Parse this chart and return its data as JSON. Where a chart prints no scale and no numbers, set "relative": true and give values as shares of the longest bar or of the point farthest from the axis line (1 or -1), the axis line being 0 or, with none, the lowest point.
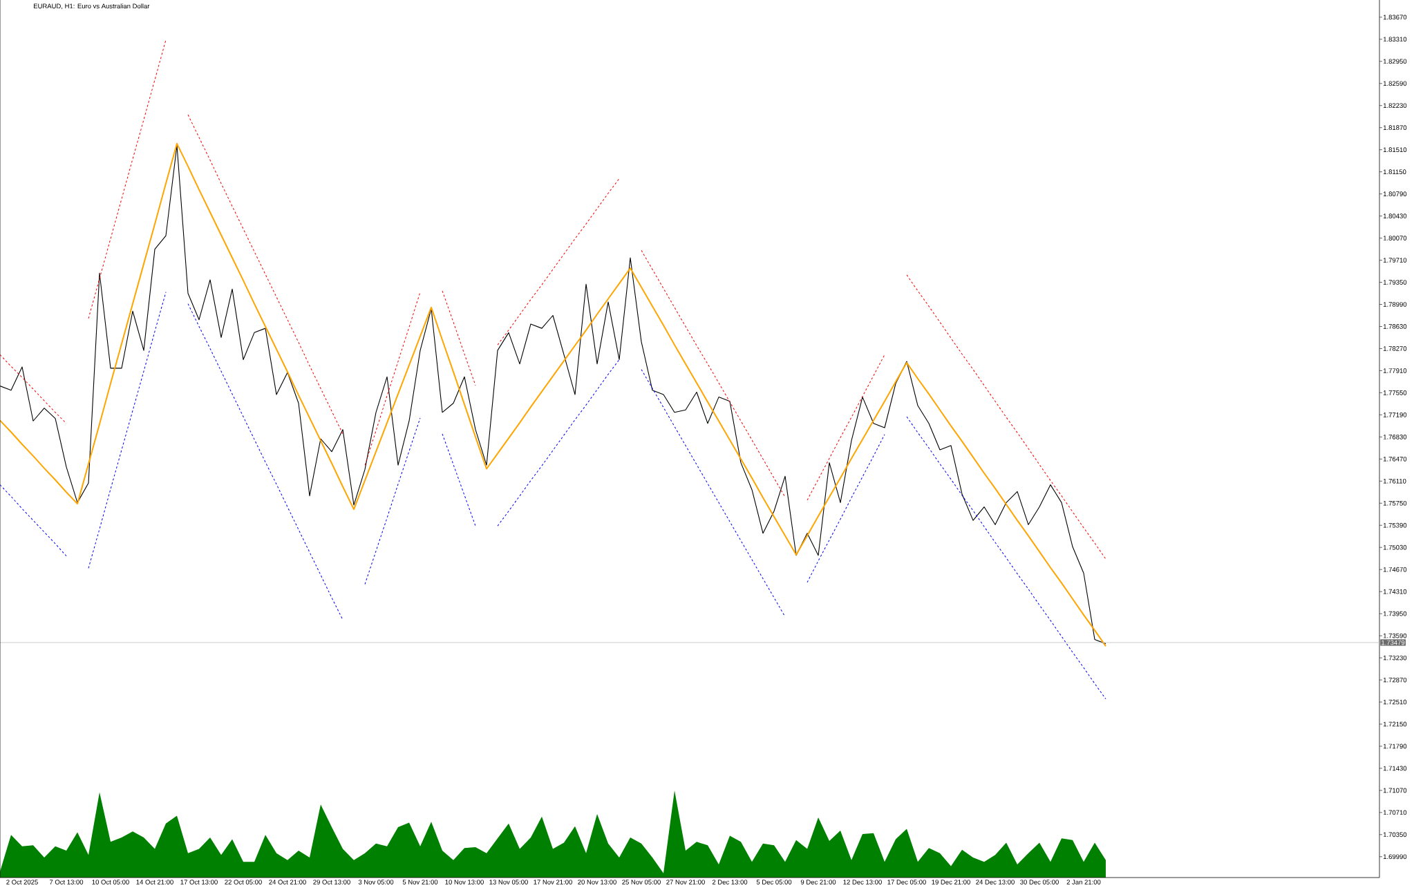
{
  "chart_data": [
    {
      "type": "line",
      "title": "EURAUD, H1: Euro vs Australian Dollar",
      "ylim": [
        1.6965,
        1.8395
      ],
      "categories": [
        null,
        null,
        "2 Oct 2025",
        null,
        null,
        null,
        "7 Oct 13:00",
        null,
        null,
        null,
        "10 Oct 05:00",
        null,
        null,
        null,
        "14 Oct 21:00",
        null,
        null,
        null,
        "17 Oct 13:00",
        null,
        null,
        null,
        "22 Oct 05:00",
        null,
        null,
        null,
        "24 Oct 21:00",
        null,
        null,
        null,
        "29 Oct 13:00",
        null,
        null,
        null,
        "3 Nov 05:00",
        null,
        null,
        null,
        "5 Nov 21:00",
        null,
        null,
        null,
        "10 Nov 13:00",
        null,
        null,
        null,
        "13 Nov 05:00",
        null,
        null,
        null,
        "17 Nov 21:00",
        null,
        null,
        null,
        "20 Nov 13:00",
        null,
        null,
        null,
        "25 Nov 05:00",
        null,
        null,
        null,
        "27 Nov 21:00",
        null,
        null,
        null,
        "2 Dec 13:00",
        null,
        null,
        null,
        "5 Dec 05:00",
        null,
        null,
        null,
        "9 Dec 21:00",
        null,
        null,
        null,
        "12 Dec 13:00",
        null,
        null,
        null,
        "17 Dec 05:00",
        null,
        null,
        null,
        "19 Dec 21:00",
        null,
        null,
        null,
        "24 Dec 13:00",
        null,
        null,
        null,
        "30 Dec 05:00",
        null,
        null,
        null,
        "2 Jan 21:00",
        null,
        null,
        null,
        null,
        null,
        null,
        null,
        null,
        null,
        null,
        null,
        null,
        null,
        null,
        null,
        null,
        null,
        null,
        null,
        null,
        null,
        null,
        null,
        null,
        null,
        null
      ],
      "yticks": [
        {
          "value": 1.6999,
          "label": "1.69990"
        },
        {
          "value": 1.7035,
          "label": "1.70350"
        },
        {
          "value": 1.7071,
          "label": "1.70710"
        },
        {
          "value": 1.7107,
          "label": "1.71070"
        },
        {
          "value": 1.7143,
          "label": "1.71430"
        },
        {
          "value": 1.7179,
          "label": "1.71790"
        },
        {
          "value": 1.7215,
          "label": "1.72150"
        },
        {
          "value": 1.7251,
          "label": "1.72510"
        },
        {
          "value": 1.7287,
          "label": "1.72870"
        },
        {
          "value": 1.7323,
          "label": "1.73230"
        },
        {
          "value": 1.7359,
          "label": "1.73590"
        },
        {
          "value": 1.7395,
          "label": "1.73950"
        },
        {
          "value": 1.7431,
          "label": "1.74310"
        },
        {
          "value": 1.7467,
          "label": "1.74670"
        },
        {
          "value": 1.7503,
          "label": "1.75030"
        },
        {
          "value": 1.7539,
          "label": "1.75390"
        },
        {
          "value": 1.7575,
          "label": "1.75750"
        },
        {
          "value": 1.7611,
          "label": "1.76110"
        },
        {
          "value": 1.7647,
          "label": "1.76470"
        },
        {
          "value": 1.7683,
          "label": "1.76830"
        },
        {
          "value": 1.7719,
          "label": "1.77190"
        },
        {
          "value": 1.7755,
          "label": "1.77550"
        },
        {
          "value": 1.7791,
          "label": "1.77910"
        },
        {
          "value": 1.7827,
          "label": "1.78270"
        },
        {
          "value": 1.7863,
          "label": "1.78630"
        },
        {
          "value": 1.7899,
          "label": "1.78990"
        },
        {
          "value": 1.7935,
          "label": "1.79350"
        },
        {
          "value": 1.7971,
          "label": "1.79710"
        },
        {
          "value": 1.8007,
          "label": "1.80070"
        },
        {
          "value": 1.8043,
          "label": "1.80430"
        },
        {
          "value": 1.8079,
          "label": "1.80790"
        },
        {
          "value": 1.8115,
          "label": "1.81150"
        },
        {
          "value": 1.8151,
          "label": "1.81510"
        },
        {
          "value": 1.8187,
          "label": "1.81870"
        },
        {
          "value": 1.8223,
          "label": "1.82230"
        },
        {
          "value": 1.8259,
          "label": "1.82590"
        },
        {
          "value": 1.8295,
          "label": "1.82950"
        },
        {
          "value": 1.8331,
          "label": "1.83310"
        },
        {
          "value": 1.8367,
          "label": "1.83670"
        }
      ],
      "series": [
        {
          "type": "line",
          "color": "#000000",
          "line_style": "solid",
          "values": [
            1.7766,
            1.7759,
            1.7797,
            1.7709,
            1.773,
            1.7713,
            1.7634,
            1.7576,
            1.7608,
            1.795,
            1.7795,
            1.7795,
            1.7888,
            1.7824,
            1.7989,
            1.8011,
            1.8158,
            1.7917,
            1.7874,
            1.7939,
            1.7845,
            1.7924,
            1.7809,
            1.7853,
            1.786,
            1.7752,
            1.7788,
            1.7738,
            1.7587,
            1.768,
            1.7659,
            1.7695,
            1.7572,
            1.763,
            1.7723,
            1.7781,
            1.7637,
            1.7709,
            1.7824,
            1.7892,
            1.7723,
            1.7738,
            1.7781,
            1.7695,
            1.7637,
            1.7824,
            1.7853,
            1.7802,
            1.7867,
            1.786,
            1.7881,
            1.7817,
            1.7752,
            1.7932,
            1.7802,
            1.7903,
            1.7809,
            1.7975,
            1.7838,
            1.7759,
            1.7752,
            1.7723,
            1.7727,
            1.7756,
            1.7705,
            1.7748,
            1.7741,
            1.7641,
            1.7597,
            1.7526,
            1.7562,
            1.7619,
            1.749,
            1.7526,
            1.749,
            1.7641,
            1.7576,
            1.7677,
            1.7748,
            1.7705,
            1.7698,
            1.777,
            1.7806,
            1.7734,
            1.7705,
            1.7662,
            1.7669,
            1.759,
            1.7547,
            1.7569,
            1.754,
            1.7576,
            1.7594,
            1.754,
            1.7569,
            1.7605,
            1.7576,
            1.7504,
            1.7461,
            1.7353,
            1.7346,
            null,
            null,
            null,
            null,
            null,
            null,
            null,
            null,
            null,
            null,
            null,
            null,
            null,
            null,
            null,
            null,
            null,
            null,
            null,
            null,
            null,
            null,
            null,
            null
          ]
        },
        {
          "type": "line",
          "color": "#ffa500",
          "line_style": "solid",
          "values": [
            1.771,
            1.7691,
            1.7671,
            1.7652,
            1.7632,
            1.7613,
            1.7593,
            1.7574,
            1.7639,
            1.7704,
            1.777,
            1.7835,
            1.79,
            1.7965,
            1.803,
            1.8096,
            1.8161,
            1.8124,
            1.8086,
            1.8049,
            1.8012,
            1.7975,
            1.7938,
            1.79,
            1.7863,
            1.7826,
            1.7789,
            1.7751,
            1.7714,
            1.7677,
            1.764,
            1.7602,
            1.7565,
            1.7612,
            1.7659,
            1.7706,
            1.7753,
            1.78,
            1.7847,
            1.7894,
            1.7841,
            1.7789,
            1.7736,
            1.7683,
            1.7631,
            1.7656,
            1.7681,
            1.7706,
            1.7732,
            1.7757,
            1.7782,
            1.7807,
            1.7832,
            1.7857,
            1.7883,
            1.7908,
            1.7933,
            1.7958,
            1.7927,
            1.7896,
            1.7865,
            1.7833,
            1.7802,
            1.7771,
            1.774,
            1.7709,
            1.7678,
            1.7647,
            1.7616,
            1.7584,
            1.7553,
            1.7522,
            1.7491,
            1.7522,
            1.7554,
            1.7585,
            1.7616,
            1.7648,
            1.7679,
            1.771,
            1.7741,
            1.7773,
            1.7804,
            1.7778,
            1.7753,
            1.7727,
            1.7701,
            1.7676,
            1.765,
            1.7624,
            1.7599,
            1.7573,
            1.7547,
            1.7522,
            1.7496,
            1.747,
            1.7445,
            1.7419,
            1.7393,
            1.7368,
            1.7342,
            null,
            null,
            null,
            null,
            null,
            null,
            null,
            null,
            null,
            null,
            null,
            null,
            null,
            null,
            null,
            null,
            null,
            null,
            null,
            null,
            null,
            null,
            null,
            null
          ]
        },
        {
          "type": "line",
          "color": "#ff0000",
          "line_style": "dotted",
          "values": [
            1.7817,
            1.7798,
            1.778,
            1.7761,
            1.7742,
            1.7723,
            1.7705,
            null,
            1.7876,
            1.7941,
            1.8006,
            1.8071,
            1.8136,
            1.82,
            1.8265,
            1.833,
            null,
            1.8208,
            1.8171,
            1.8134,
            1.8096,
            1.8059,
            1.8022,
            1.7985,
            1.7948,
            1.7911,
            1.7874,
            1.7837,
            1.7799,
            1.7762,
            1.7725,
            1.7688,
            null,
            1.7637,
            1.7693,
            1.775,
            1.7806,
            1.7862,
            1.7919,
            null,
            1.7921,
            1.787,
            1.7818,
            1.7767,
            null,
            1.7833,
            1.7857,
            1.7882,
            1.7907,
            1.7931,
            1.7956,
            1.7981,
            1.8006,
            1.803,
            1.8055,
            1.808,
            1.8104,
            null,
            1.7987,
            1.7956,
            1.7925,
            1.7894,
            1.7863,
            1.7832,
            1.7802,
            1.7771,
            1.774,
            1.7709,
            1.7678,
            1.7647,
            1.7616,
            1.7585,
            null,
            1.758,
            1.7614,
            1.7648,
            1.7682,
            1.7715,
            1.7749,
            1.7783,
            1.7817,
            null,
            1.7947,
            1.7921,
            1.7896,
            1.787,
            1.7844,
            1.7818,
            1.7793,
            1.7767,
            1.7741,
            1.7715,
            1.769,
            1.7664,
            1.7638,
            1.7612,
            1.7587,
            1.7561,
            1.7535,
            1.751,
            1.7484,
            null,
            null,
            null,
            null,
            null,
            null,
            null,
            null,
            null,
            null,
            null,
            null,
            null,
            null,
            null,
            null,
            null,
            null,
            null,
            null,
            null,
            null,
            null,
            null
          ]
        },
        {
          "type": "line",
          "color": "#0000ff",
          "line_style": "dotted",
          "values": [
            1.7605,
            1.7586,
            1.7566,
            1.7547,
            1.7528,
            1.7509,
            1.7489,
            null,
            1.7469,
            1.7533,
            1.7598,
            1.7662,
            1.7726,
            1.779,
            1.7855,
            1.7919,
            null,
            1.79,
            1.7863,
            1.7827,
            1.779,
            1.7753,
            1.7716,
            1.7679,
            1.7642,
            1.7606,
            1.7569,
            1.7532,
            1.7495,
            1.7458,
            1.7421,
            1.7385,
            null,
            1.7443,
            1.7497,
            1.7551,
            1.7606,
            1.766,
            1.7714,
            null,
            1.7688,
            1.7638,
            1.7588,
            1.7538,
            null,
            1.7538,
            1.7562,
            1.7587,
            1.7612,
            1.7636,
            1.7661,
            1.7686,
            1.7711,
            1.7735,
            1.776,
            1.7785,
            1.7809,
            null,
            1.7793,
            1.7762,
            1.7731,
            1.77,
            1.7669,
            1.7638,
            1.7607,
            1.7576,
            1.7545,
            1.7514,
            1.7483,
            1.7452,
            1.7421,
            1.739,
            null,
            1.7446,
            1.7481,
            1.7515,
            1.7549,
            1.7584,
            1.7618,
            1.7652,
            1.7687,
            null,
            1.7716,
            1.769,
            1.7665,
            1.7639,
            1.7614,
            1.7588,
            1.7563,
            1.7537,
            1.7511,
            1.7486,
            1.746,
            1.7435,
            1.7409,
            1.7384,
            1.7358,
            1.7332,
            1.7307,
            1.7281,
            1.7256,
            null,
            null,
            null,
            null,
            null,
            null,
            null,
            null,
            null,
            null,
            null,
            null,
            null,
            null,
            null,
            null,
            null,
            null,
            null,
            null,
            null,
            null,
            null,
            null
          ]
        }
      ],
      "ref_lines": [
        {
          "axis": "y",
          "value": 1.73479,
          "label": "1.73479",
          "color": "#c0c0c0"
        }
      ]
    },
    {
      "type": "area",
      "relative": true,
      "color": "#008000",
      "tick_labels": false,
      "categories": [
        null,
        null,
        null,
        null,
        null,
        null,
        null,
        null,
        null,
        null,
        null,
        null,
        null,
        null,
        null,
        null,
        null,
        null,
        null,
        null,
        null,
        null,
        null,
        null,
        null,
        null,
        null,
        null,
        null,
        null,
        null,
        null,
        null,
        null,
        null,
        null,
        null,
        null,
        null,
        null,
        null,
        null,
        null,
        null,
        null,
        null,
        null,
        null,
        null,
        null,
        null,
        null,
        null,
        null,
        null,
        null,
        null,
        null,
        null,
        null,
        null,
        null,
        null,
        null,
        null,
        null,
        null,
        null,
        null,
        null,
        null,
        null,
        null,
        null,
        null,
        null,
        null,
        null,
        null,
        null,
        null,
        null,
        null,
        null,
        null,
        null,
        null,
        null,
        null,
        null,
        null,
        null,
        null,
        null,
        null,
        null,
        null,
        null,
        null,
        null,
        null,
        null,
        null,
        null,
        null,
        null,
        null,
        null,
        null,
        null,
        null,
        null,
        null,
        null,
        null,
        null,
        null,
        null,
        null,
        null,
        null,
        null,
        null,
        null,
        null
      ],
      "values": [
        0.07,
        0.49,
        0.36,
        0.37,
        0.23,
        0.36,
        0.31,
        0.52,
        0.26,
        0.98,
        0.41,
        0.46,
        0.53,
        0.46,
        0.33,
        0.62,
        0.71,
        0.28,
        0.33,
        0.46,
        0.26,
        0.44,
        0.18,
        0.18,
        0.49,
        0.28,
        0.2,
        0.31,
        0.23,
        0.84,
        0.58,
        0.33,
        0.2,
        0.28,
        0.39,
        0.36,
        0.58,
        0.63,
        0.36,
        0.64,
        0.31,
        0.2,
        0.34,
        0.35,
        0.28,
        0.45,
        0.62,
        0.33,
        0.46,
        0.7,
        0.33,
        0.4,
        0.59,
        0.28,
        0.73,
        0.39,
        0.23,
        0.46,
        0.39,
        0.23,
        0.05,
        1,
        0.31,
        0.41,
        0.37,
        0.15,
        0.48,
        0.41,
        0.18,
        0.39,
        0.37,
        0.18,
        0.43,
        0.33,
        0.69,
        0.42,
        0.54,
        0.2,
        0.5,
        0.51,
        0.18,
        0.44,
        0.56,
        0.18,
        0.34,
        0.28,
        0.13,
        0.32,
        0.23,
        0.18,
        0.26,
        0.4,
        0.15,
        0.28,
        0.4,
        0.18,
        0.45,
        0.43,
        0.18,
        0.4,
        0.2,
        null,
        null,
        null,
        null,
        null,
        null,
        null,
        null,
        null,
        null,
        null,
        null,
        null,
        null,
        null,
        null,
        null,
        null,
        null,
        null,
        null,
        null,
        null,
        null
      ]
    }
  ]
}
